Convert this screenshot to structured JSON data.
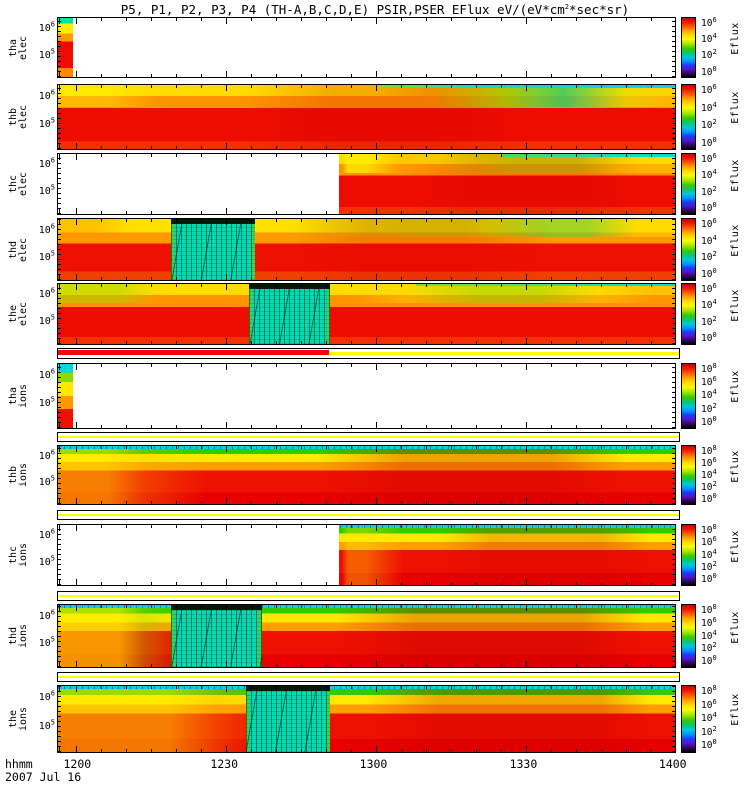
{
  "chart_data": {
    "type": "heatmap",
    "subtype": "energy-time spectrogram stack",
    "title": "P5, P1, P2, P3, P4 (TH-A,B,C,D,E) PSIR,PSER EFlux eV/(eV*cm^2*sec*sr)",
    "x_axis_label": "hhmm",
    "date": "2007 Jul 16",
    "x_ticks": [
      {
        "label": "1200",
        "pct": 3.3
      },
      {
        "label": "1230",
        "pct": 27.1
      },
      {
        "label": "1300",
        "pct": 51.3
      },
      {
        "label": "1330",
        "pct": 75.6
      },
      {
        "label": "1400",
        "pct": 99.8
      }
    ],
    "x_range": [
      "1200",
      "1400"
    ],
    "y_scale": "log",
    "colorbar_label": "Eflux",
    "legend_position": "right colorbar per panel",
    "grid": false,
    "rows": [
      {
        "kind": "panel",
        "id": "tha_elec",
        "probe": "TH-A (P5)",
        "species": "elec",
        "label_lines": [
          "tha",
          "elec"
        ],
        "ytick_labels": [
          "10^6",
          "10^5"
        ],
        "cbar_ticks": [
          "10^6",
          "10^4",
          "10^2",
          "10^0"
        ],
        "height": 61,
        "gap_above": 0,
        "leftstrip": true,
        "cyanline": false,
        "burst": null,
        "nodata": [
          {
            "from": 2.4,
            "to": 100
          }
        ],
        "coverage": "flux only near 1200 (short strip at left edge), no data afterwards"
      },
      {
        "kind": "panel",
        "id": "thb_elec",
        "probe": "TH-B (P1)",
        "species": "elec",
        "label_lines": [
          "thb",
          "elec"
        ],
        "ytick_labels": [
          "10^6",
          "10^5"
        ],
        "cbar_ticks": [
          "10^6",
          "10^4",
          "10^2",
          "10^0"
        ],
        "height": 66,
        "gap_above": 6,
        "leftstrip": false,
        "cyanline": true,
        "burst": null,
        "nodata": [],
        "coverage": "full interval; high red flux body, yellow upper-left, green/cyan upper-right"
      },
      {
        "kind": "panel",
        "id": "thc_elec",
        "probe": "TH-C (P2)",
        "species": "elec",
        "label_lines": [
          "thc",
          "elec"
        ],
        "ytick_labels": [
          "10^6",
          "10^5"
        ],
        "cbar_ticks": [
          "10^6",
          "10^4",
          "10^2",
          "10^0"
        ],
        "height": 62,
        "gap_above": 3,
        "leftstrip": false,
        "cyanline": true,
        "burst": null,
        "nodata": [
          {
            "from": 0,
            "to": 45.5
          }
        ],
        "coverage": "no data until ~1253, then red/orange flux with green-cyan top band"
      },
      {
        "kind": "panel",
        "id": "thd_elec",
        "probe": "TH-D (P3)",
        "species": "elec",
        "label_lines": [
          "thd",
          "elec"
        ],
        "ytick_labels": [
          "10^6",
          "10^5"
        ],
        "cbar_ticks": [
          "10^6",
          "10^4",
          "10^2",
          "10^0"
        ],
        "height": 63,
        "gap_above": 3,
        "leftstrip": false,
        "cyanline": false,
        "burst": {
          "from": 18.3,
          "to": 32,
          "note": "speckled cyan/green burst-mode interval ~1220-1234"
        },
        "nodata": [],
        "coverage": "full interval; yellow/orange top bands over red body"
      },
      {
        "kind": "panel",
        "id": "the_elec",
        "probe": "TH-E (P4)",
        "species": "elec",
        "label_lines": [
          "the",
          "elec"
        ],
        "ytick_labels": [
          "10^6",
          "10^5"
        ],
        "cbar_ticks": [
          "10^6",
          "10^4",
          "10^2",
          "10^0"
        ],
        "height": 62,
        "gap_above": 2,
        "leftstrip": false,
        "cyanline": true,
        "burst": {
          "from": 30.9,
          "to": 44.1,
          "note": "speckled cyan/green burst-mode interval ~1237-1253"
        },
        "nodata": [],
        "coverage": "full interval; red body with yellow-green upper bands"
      },
      {
        "kind": "strip",
        "id": "bar_red_yellow",
        "height": 11,
        "gap_above": 3,
        "segments": [
          {
            "color": "#ff0000",
            "from": 0,
            "to": 43.6,
            "thick": true
          },
          {
            "color": "#ffff00",
            "from": 43.6,
            "to": 100,
            "thick": false
          }
        ]
      },
      {
        "kind": "panel",
        "id": "tha_ions",
        "probe": "TH-A (P5)",
        "species": "ions",
        "label_lines": [
          "tha",
          "ions"
        ],
        "ytick_labels": [
          "10^6",
          "10^5"
        ],
        "cbar_ticks": [
          "10^8",
          "10^6",
          "10^4",
          "10^2",
          "10^0"
        ],
        "height": 66,
        "gap_above": 4,
        "leftstrip": true,
        "cyanline": false,
        "burst": null,
        "nodata": [
          {
            "from": 2.4,
            "to": 100
          }
        ],
        "coverage": "flux only near 1200 (short strip at left edge), no data afterwards"
      },
      {
        "kind": "strip",
        "id": "bar_yellow_1",
        "height": 10,
        "gap_above": 3,
        "segments": [
          {
            "color": "#ffff00",
            "from": 0,
            "to": 100,
            "thick": false
          }
        ]
      },
      {
        "kind": "panel",
        "id": "thb_ions",
        "probe": "TH-B (P1)",
        "species": "ions",
        "label_lines": [
          "thb",
          "ions"
        ],
        "ytick_labels": [
          "10^6",
          "10^5"
        ],
        "cbar_ticks": [
          "10^8",
          "10^6",
          "10^4",
          "10^2",
          "10^0"
        ],
        "height": 60,
        "gap_above": 3,
        "leftstrip": false,
        "cyanline": true,
        "burst": null,
        "nodata": [],
        "coverage": "full interval; cyan top line, green then yellow bands, orange-red body"
      },
      {
        "kind": "strip",
        "id": "bar_yellow_2",
        "height": 10,
        "gap_above": 5,
        "segments": [
          {
            "color": "#ffff00",
            "from": 0,
            "to": 100,
            "thick": false
          }
        ]
      },
      {
        "kind": "panel",
        "id": "thc_ions",
        "probe": "TH-C (P2)",
        "species": "ions",
        "label_lines": [
          "thc",
          "ions"
        ],
        "ytick_labels": [
          "10^6",
          "10^5"
        ],
        "cbar_ticks": [
          "10^8",
          "10^6",
          "10^4",
          "10^2",
          "10^0"
        ],
        "height": 62,
        "gap_above": 4,
        "leftstrip": false,
        "cyanline": true,
        "burst": null,
        "nodata": [
          {
            "from": 0,
            "to": 45.5
          }
        ],
        "coverage": "no data until ~1253, then banded ion spectrogram"
      },
      {
        "kind": "strip",
        "id": "bar_yellow_3",
        "height": 10,
        "gap_above": 5,
        "segments": [
          {
            "color": "#ffff00",
            "from": 0,
            "to": 100,
            "thick": false
          }
        ]
      },
      {
        "kind": "panel",
        "id": "thd_ions",
        "probe": "TH-D (P3)",
        "species": "ions",
        "label_lines": [
          "thd",
          "ions"
        ],
        "ytick_labels": [
          "10^6",
          "10^5"
        ],
        "cbar_ticks": [
          "10^8",
          "10^6",
          "10^4",
          "10^2",
          "10^0"
        ],
        "height": 64,
        "gap_above": 3,
        "leftstrip": false,
        "cyanline": true,
        "burst": {
          "from": 18.3,
          "to": 33,
          "note": "speckled burst-mode interval ~1220-1237"
        },
        "nodata": [],
        "coverage": "full interval; yellow-green left, orange-red body"
      },
      {
        "kind": "strip",
        "id": "bar_yellow_4",
        "height": 10,
        "gap_above": 4,
        "segments": [
          {
            "color": "#ffff00",
            "from": 0,
            "to": 100,
            "thick": false
          }
        ]
      },
      {
        "kind": "panel",
        "id": "the_ions",
        "probe": "TH-E (P4)",
        "species": "ions",
        "label_lines": [
          "the",
          "ions"
        ],
        "ytick_labels": [
          "10^6",
          "10^5"
        ],
        "cbar_ticks": [
          "10^8",
          "10^6",
          "10^4",
          "10^2",
          "10^0"
        ],
        "height": 68,
        "gap_above": 3,
        "leftstrip": false,
        "cyanline": true,
        "burst": {
          "from": 30.4,
          "to": 44.1,
          "note": "speckled burst-mode interval ~1234-1253"
        },
        "nodata": [],
        "coverage": "full interval; cyan/green top bands, yellow-orange left, red body"
      }
    ]
  },
  "colors": {
    "flux_high_red": "#ee0c00",
    "flux_orange": "#ff9900",
    "flux_yellow": "#ffe800",
    "flux_green": "#30cc00",
    "flux_cyan": "#00dcd2",
    "burst_teal": "#00dcb4",
    "strip_red": "#ff0000",
    "strip_yellow": "#ffff00",
    "background": "#ffffff",
    "axis": "#000000"
  }
}
